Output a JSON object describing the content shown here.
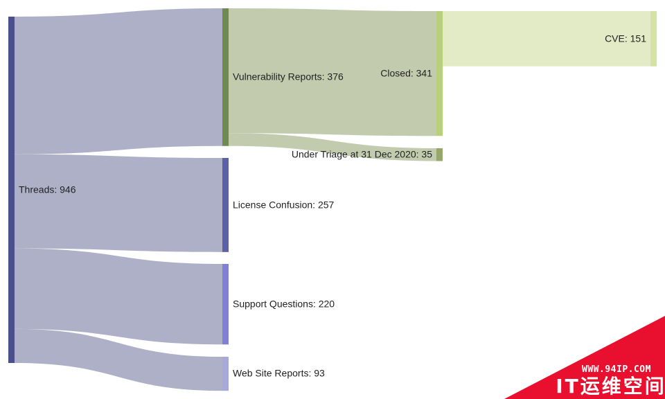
{
  "chart_data": {
    "type": "sankey",
    "title": "",
    "nodes": [
      {
        "id": "threads",
        "label": "Threads: 946",
        "name": "Threads",
        "value": 946,
        "color": "#4b4f8c"
      },
      {
        "id": "vuln",
        "label": "Vulnerability Reports: 376",
        "name": "Vulnerability Reports",
        "value": 376,
        "color": "#6e8a4e"
      },
      {
        "id": "license",
        "label": "License Confusion: 257",
        "name": "License Confusion",
        "value": 257,
        "color": "#5c60a4"
      },
      {
        "id": "support",
        "label": "Support Questions: 220",
        "name": "Support Questions",
        "value": 220,
        "color": "#8081d6"
      },
      {
        "id": "web",
        "label": "Web Site Reports: 93",
        "name": "Web Site Reports",
        "value": 93,
        "color": "#a7a9da"
      },
      {
        "id": "closed",
        "label": "Closed: 341",
        "name": "Closed",
        "value": 341,
        "color": "#b8d07a"
      },
      {
        "id": "triage",
        "label": "Under Triage at 31 Dec 2020: 35",
        "name": "Under Triage at 31 Dec 2020",
        "value": 35,
        "color": "#93a86a"
      },
      {
        "id": "cve",
        "label": "CVE: 151",
        "name": "CVE",
        "value": 151,
        "color": "#d4e3a4"
      }
    ],
    "links": [
      {
        "source": "threads",
        "target": "vuln",
        "value": 376,
        "color": "#aeb0c8"
      },
      {
        "source": "threads",
        "target": "license",
        "value": 257,
        "color": "#aeb0c8"
      },
      {
        "source": "threads",
        "target": "support",
        "value": 220,
        "color": "#aeb0c8"
      },
      {
        "source": "threads",
        "target": "web",
        "value": 93,
        "color": "#aeb0c8"
      },
      {
        "source": "vuln",
        "target": "closed",
        "value": 341,
        "color": "#c3cbae"
      },
      {
        "source": "vuln",
        "target": "triage",
        "value": 35,
        "color": "#c3cbae"
      },
      {
        "source": "closed",
        "target": "cve",
        "value": 151,
        "color": "#e3ebc6"
      }
    ]
  },
  "watermark": {
    "url": "WWW.94IP.COM",
    "text": "IT运维空间",
    "color": "#e8102e"
  }
}
